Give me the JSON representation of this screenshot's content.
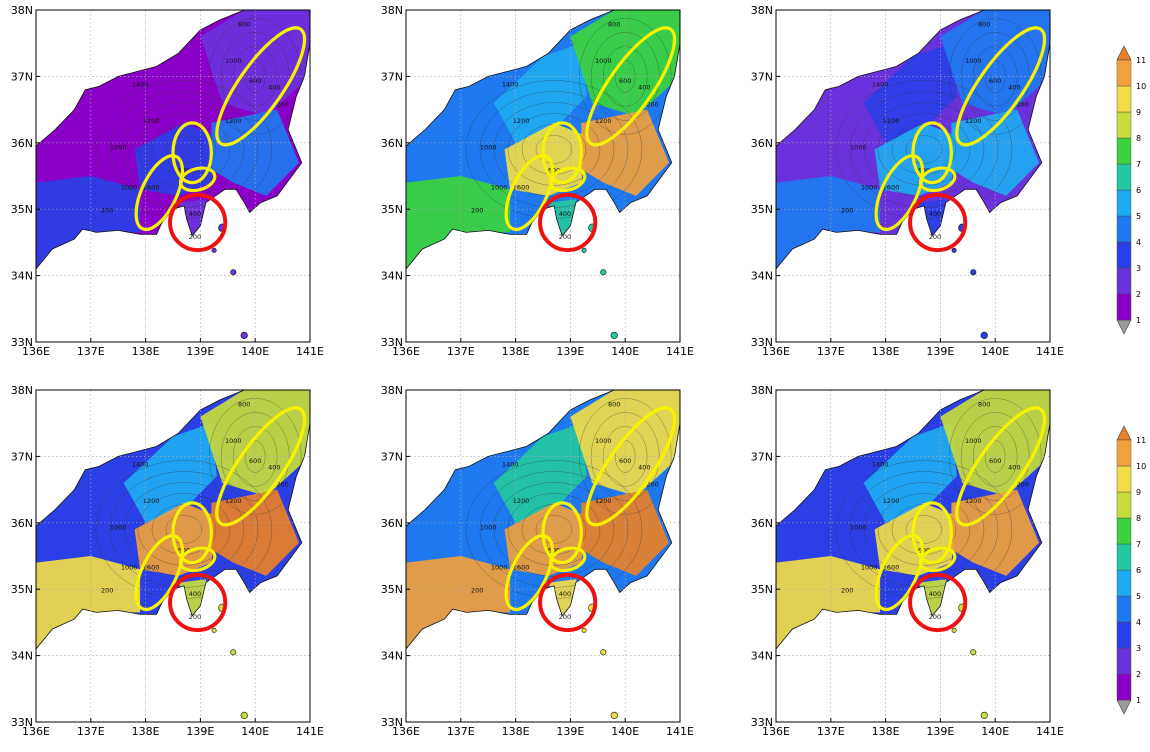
{
  "axes": {
    "x_ticks": [
      "136E",
      "137E",
      "138E",
      "139E",
      "140E",
      "141E"
    ],
    "y_ticks": [
      "33N",
      "34N",
      "35N",
      "36N",
      "37N",
      "38N"
    ],
    "x_values": [
      136,
      137,
      138,
      139,
      140,
      141
    ],
    "y_values": [
      33,
      34,
      35,
      36,
      37,
      38
    ],
    "xlim": [
      136,
      141
    ],
    "ylim": [
      33,
      38
    ]
  },
  "colorbars": [
    {
      "labels": [
        "1",
        "2",
        "3",
        "4",
        "5",
        "6",
        "7",
        "8",
        "9",
        "10",
        "11"
      ],
      "colors": [
        "#9a9a9a",
        "#8b00c8",
        "#6a32dc",
        "#2a3fe6",
        "#1e78f0",
        "#1eaaf0",
        "#23c8a0",
        "#3cd23c",
        "#c8dc3c",
        "#f0dc46",
        "#f0a03c",
        "#e88028"
      ]
    },
    {
      "labels": [
        "1",
        "2",
        "3",
        "4",
        "5",
        "6",
        "7",
        "8",
        "9",
        "10",
        "11"
      ],
      "colors": [
        "#9a9a9a",
        "#8b00c8",
        "#6a32dc",
        "#2a3fe6",
        "#1e78f0",
        "#1eaaf0",
        "#23c8a0",
        "#3cd23c",
        "#c8dc3c",
        "#f0dc46",
        "#f0a03c",
        "#e88028"
      ]
    }
  ],
  "contour_labels": [
    "1400",
    "1200",
    "1000",
    "1600",
    "800",
    "600",
    "400",
    "200"
  ],
  "highlight_colors": {
    "ellipse": "#f7f200",
    "circle": "#ee1111"
  },
  "panels": [
    {
      "row": 1,
      "col": 1,
      "fields": [
        1,
        1,
        2,
        3,
        4,
        3,
        2
      ]
    },
    {
      "row": 1,
      "col": 2,
      "fields": [
        4,
        5,
        7,
        9,
        10,
        7,
        6
      ]
    },
    {
      "row": 1,
      "col": 3,
      "fields": [
        2,
        3,
        4,
        5,
        5,
        4,
        3
      ]
    },
    {
      "row": 2,
      "col": 1,
      "fields": [
        3,
        5,
        8,
        10,
        11,
        9,
        8
      ]
    },
    {
      "row": 2,
      "col": 2,
      "fields": [
        4,
        6,
        9,
        10,
        11,
        10,
        9
      ]
    },
    {
      "row": 2,
      "col": 3,
      "fields": [
        3,
        5,
        8,
        9,
        10,
        9,
        8
      ]
    }
  ]
}
